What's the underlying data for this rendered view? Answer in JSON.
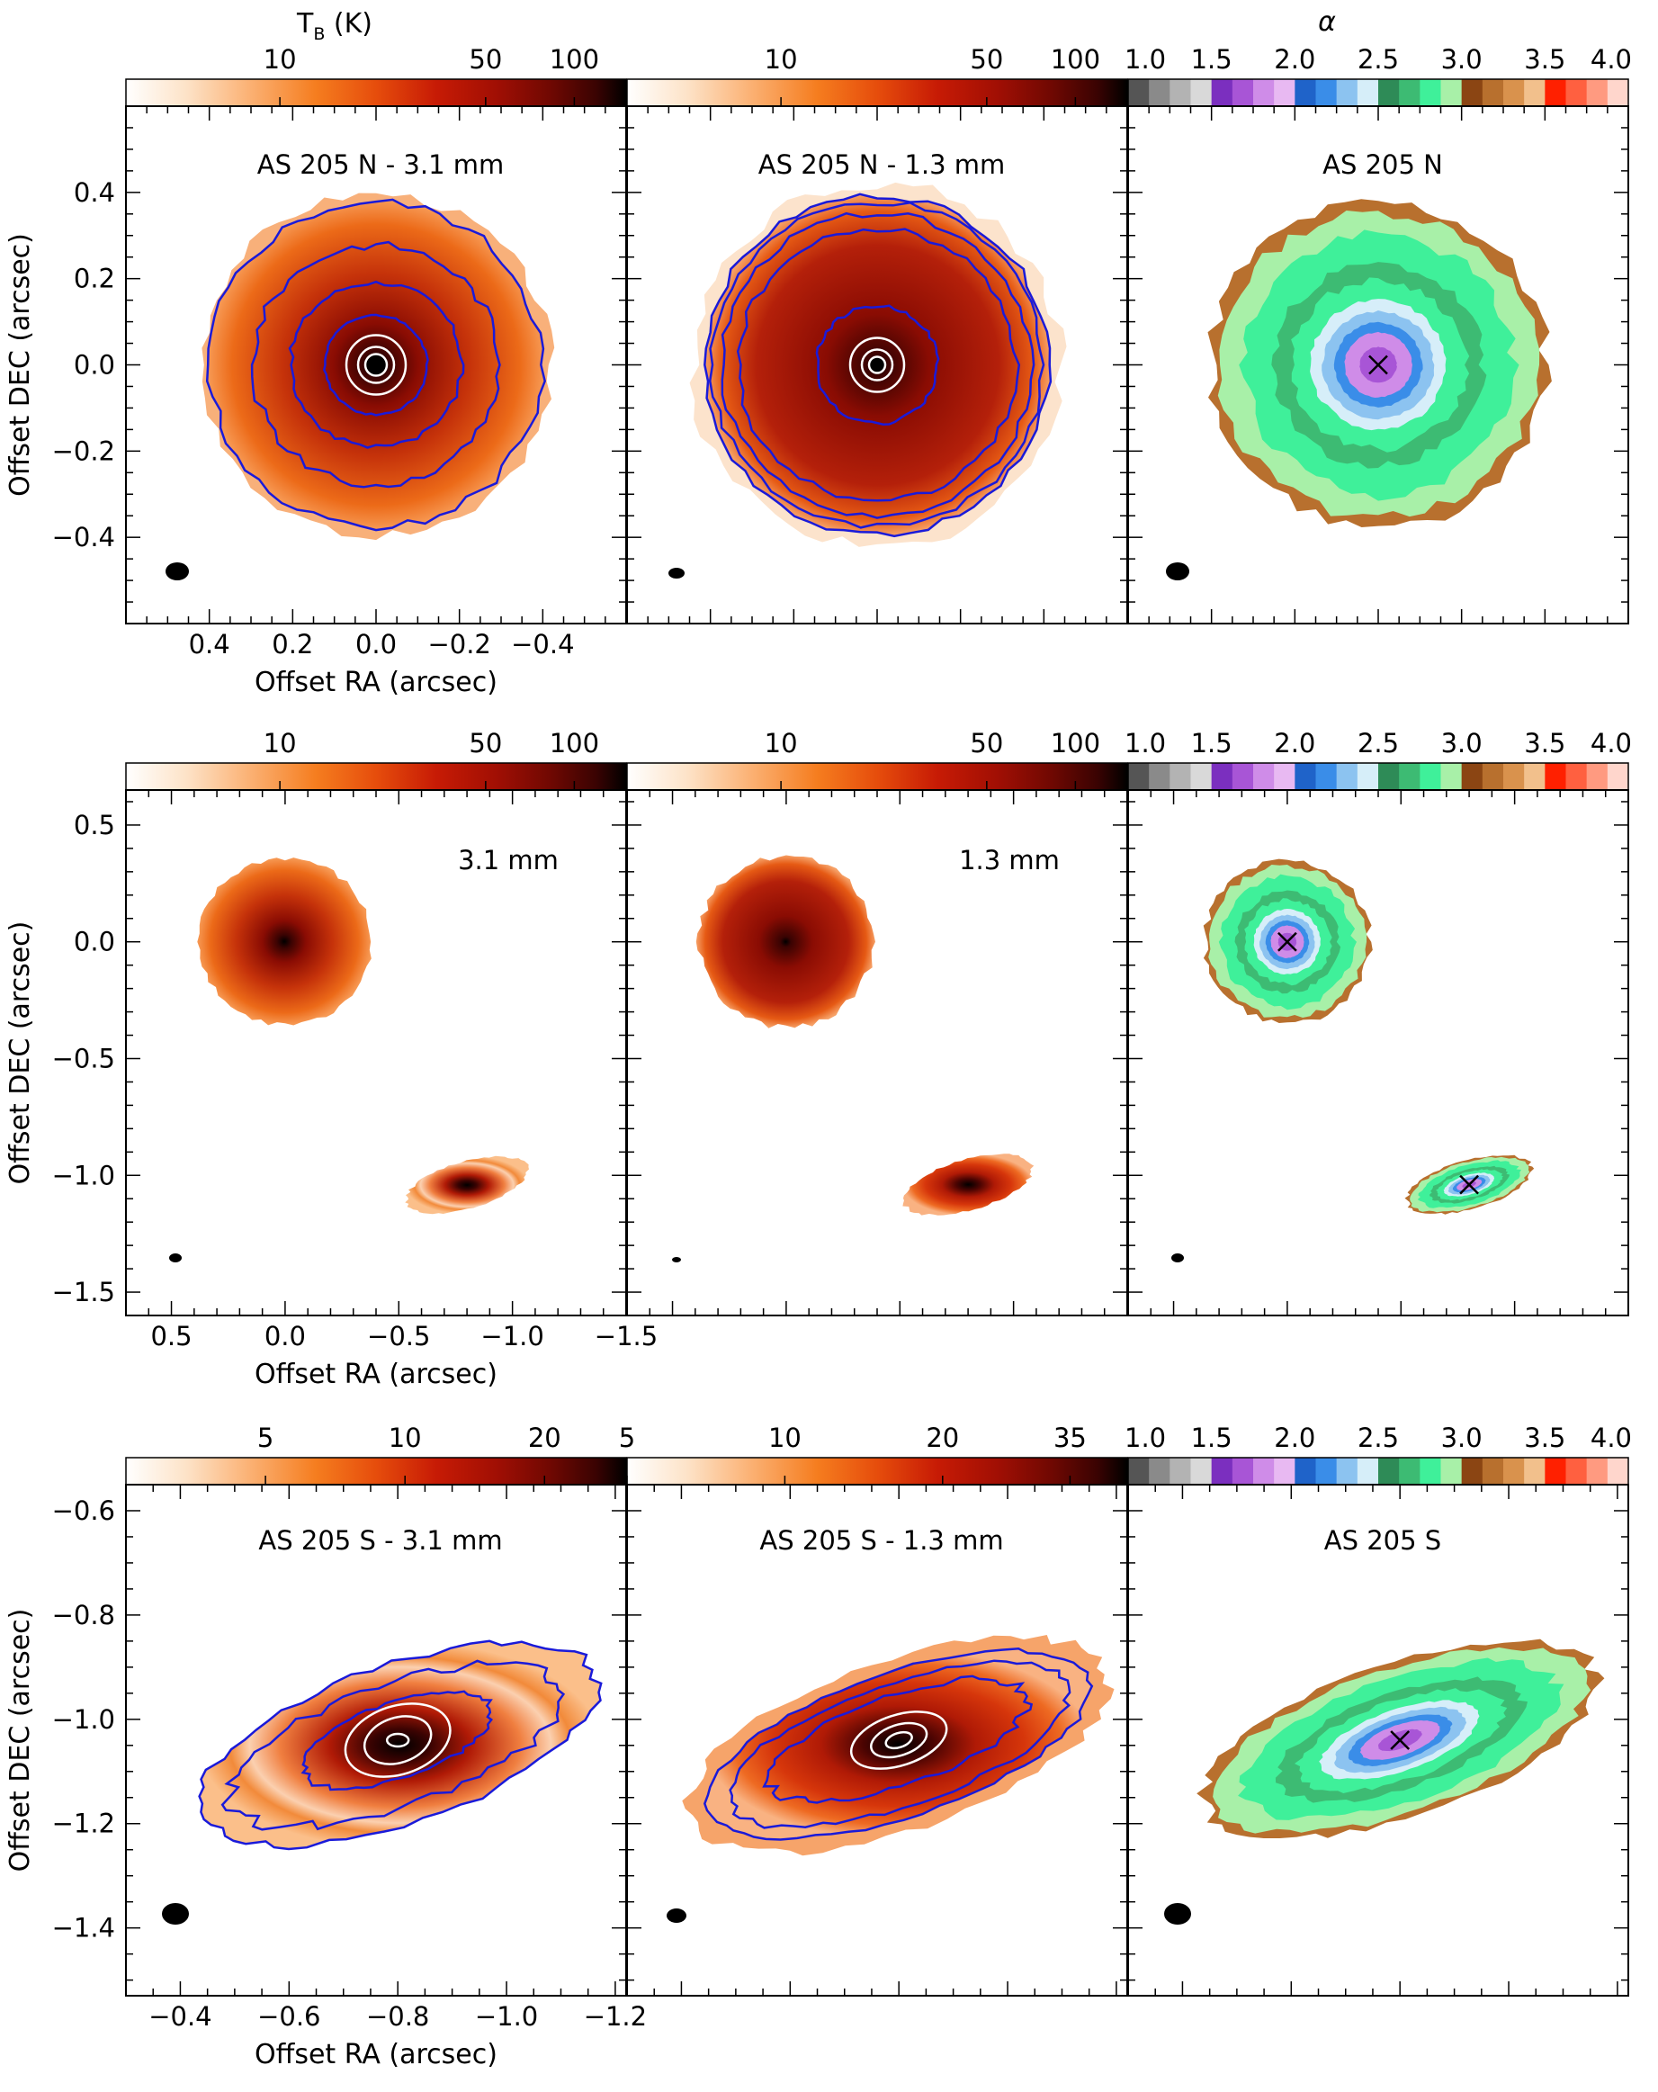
{
  "figure": {
    "tb_label_main": "T",
    "tb_label_sub": "B",
    "tb_label_unit": " (K)",
    "alpha_label": "α",
    "ra_label": "Offset RA (arcsec)",
    "dec_label": "Offset DEC (arcsec)"
  },
  "colors": {
    "tb_colormap": [
      "#ffffff",
      "#fde3c8",
      "#fbb072",
      "#f57d1f",
      "#e64d0c",
      "#c71b05",
      "#a10f04",
      "#6f0802",
      "#3a0302",
      "#000000"
    ],
    "alpha_bins": [
      "#555555",
      "#8a8a8a",
      "#b3b3b3",
      "#d9d9d9",
      "#7b2fbf",
      "#a855d6",
      "#cf8ce8",
      "#e8b9f2",
      "#1f63c9",
      "#3a8de8",
      "#8cc3f0",
      "#d6eef9",
      "#2e8b57",
      "#3dbb73",
      "#3ff09a",
      "#a8f0a8",
      "#8b4513",
      "#b8702e",
      "#d9924d",
      "#f2c08c",
      "#ff2000",
      "#ff6040",
      "#ff9a80",
      "#ffd6cc"
    ],
    "contour_outer": "#1a1ad9",
    "contour_inner": "#ffffff",
    "beam": "#000000"
  },
  "chart_data": [
    {
      "type": "heatmap",
      "panel": "row1-col1",
      "title": "AS 205 N - 3.1 mm",
      "xlabel": "Offset RA (arcsec)",
      "ylabel": "Offset DEC (arcsec)",
      "xlim": [
        0.6,
        -0.6
      ],
      "ylim": [
        -0.6,
        0.6
      ],
      "xticks": [
        0.4,
        0.2,
        0.0,
        -0.2,
        -0.4
      ],
      "yticks": [
        0.4,
        0.2,
        0.0,
        -0.2,
        -0.4
      ],
      "colorbar": {
        "label": "T_B (K)",
        "scale": "log",
        "range": [
          3,
          150
        ],
        "ticks": [
          10,
          50,
          100
        ]
      },
      "sources": [
        {
          "name": "AS 205 N",
          "x": 0.0,
          "y": 0.0,
          "radius_arcsec": 0.38
        }
      ]
    },
    {
      "type": "heatmap",
      "panel": "row1-col2",
      "title": "AS 205 N - 1.3 mm",
      "xlim": [
        0.6,
        -0.6
      ],
      "ylim": [
        -0.6,
        0.6
      ],
      "colorbar": {
        "label": "T_B (K)",
        "scale": "log",
        "range": [
          3,
          150
        ],
        "ticks": [
          10,
          50,
          100
        ]
      },
      "sources": [
        {
          "name": "AS 205 N",
          "x": 0.0,
          "y": 0.0,
          "radius_arcsec": 0.4
        }
      ]
    },
    {
      "type": "heatmap",
      "panel": "row1-col3",
      "title": "AS 205 N",
      "xlim": [
        0.6,
        -0.6
      ],
      "ylim": [
        -0.6,
        0.6
      ],
      "colorbar": {
        "label": "α",
        "scale": "linear",
        "range": [
          1.0,
          4.0
        ],
        "ticks": [
          1.0,
          1.5,
          2.0,
          2.5,
          3.0,
          3.5,
          4.0
        ]
      },
      "sources": [
        {
          "name": "AS 205 N",
          "x": 0.0,
          "y": 0.0,
          "radius_arcsec": 0.38
        }
      ]
    },
    {
      "type": "heatmap",
      "panel": "row2-col1",
      "title": "3.1 mm",
      "xlabel": "Offset RA (arcsec)",
      "ylabel": "Offset DEC (arcsec)",
      "xlim": [
        0.7,
        -1.5
      ],
      "ylim": [
        -1.6,
        0.65
      ],
      "xticks": [
        0.5,
        0.0,
        -0.5,
        -1.0,
        -1.5
      ],
      "yticks": [
        0.5,
        0.0,
        -0.5,
        -1.0,
        -1.5
      ],
      "colorbar": {
        "label": "T_B (K)",
        "scale": "log",
        "range": [
          3,
          150
        ],
        "ticks": [
          10,
          50,
          100
        ]
      },
      "sources": [
        {
          "name": "AS 205 N",
          "x": 0.0,
          "y": 0.0
        },
        {
          "name": "AS 205 S",
          "x": -0.8,
          "y": -1.04
        }
      ]
    },
    {
      "type": "heatmap",
      "panel": "row2-col2",
      "title": "1.3 mm",
      "colorbar": {
        "label": "T_B (K)",
        "scale": "log",
        "range": [
          3,
          150
        ],
        "ticks": [
          10,
          50,
          100
        ]
      }
    },
    {
      "type": "heatmap",
      "panel": "row2-col3",
      "colorbar": {
        "label": "α",
        "scale": "linear",
        "range": [
          1.0,
          4.0
        ],
        "ticks": [
          1.0,
          1.5,
          2.0,
          2.5,
          3.0,
          3.5,
          4.0
        ]
      }
    },
    {
      "type": "heatmap",
      "panel": "row3-col1",
      "title": "AS 205 S - 3.1 mm",
      "xlabel": "Offset RA (arcsec)",
      "ylabel": "Offset DEC (arcsec)",
      "xlim": [
        -0.3,
        -1.22
      ],
      "ylim": [
        -1.53,
        -0.55
      ],
      "xticks": [
        -0.4,
        -0.6,
        -0.8,
        -1.0,
        -1.2
      ],
      "yticks": [
        -0.6,
        -0.8,
        -1.0,
        -1.2,
        -1.4
      ],
      "colorbar": {
        "label": "T_B (K)",
        "scale": "log",
        "range": [
          2.5,
          30
        ],
        "ticks": [
          5,
          10,
          20
        ]
      },
      "sources": [
        {
          "name": "AS 205 S",
          "x": -0.8,
          "y": -1.04
        }
      ]
    },
    {
      "type": "heatmap",
      "panel": "row3-col2",
      "title": "AS 205 S - 1.3 mm",
      "colorbar": {
        "label": "T_B (K)",
        "scale": "log",
        "range": [
          5,
          45
        ],
        "ticks": [
          5,
          10,
          20,
          35
        ]
      }
    },
    {
      "type": "heatmap",
      "panel": "row3-col3",
      "title": "AS 205 S",
      "colorbar": {
        "label": "α",
        "scale": "linear",
        "range": [
          1.0,
          4.0
        ],
        "ticks": [
          1.0,
          1.5,
          2.0,
          2.5,
          3.0,
          3.5,
          4.0
        ]
      }
    }
  ]
}
